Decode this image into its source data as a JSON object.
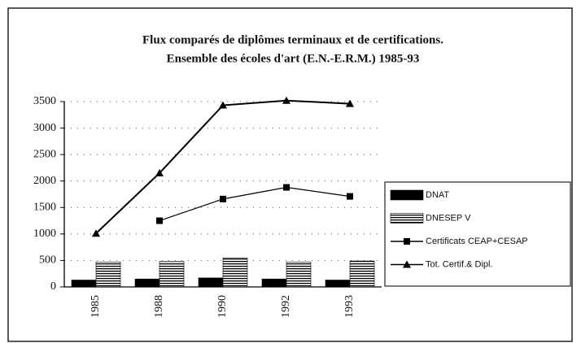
{
  "chart_data": {
    "type": "bar",
    "title": "Flux comparés de diplômes terminaux et de certifications.",
    "subtitle": "Ensemble des écoles d'art (E.N.-E.R.M.) 1985-93",
    "categories": [
      "1985",
      "1988",
      "1990",
      "1992",
      "1993"
    ],
    "series": [
      {
        "name": "DNAT",
        "type": "bar",
        "color": "#000000",
        "values": [
          130,
          150,
          170,
          150,
          130
        ]
      },
      {
        "name": "DNESEP V",
        "type": "bar",
        "color": "#000000",
        "hatch": "horizontal",
        "values": [
          470,
          480,
          550,
          470,
          490
        ]
      },
      {
        "name": "Certificats CEAP+CESAP",
        "type": "line",
        "color": "#000000",
        "marker": "square",
        "values": [
          null,
          1250,
          1660,
          1880,
          1710
        ]
      },
      {
        "name": "Tot. Certif.& Dipl.",
        "type": "line",
        "color": "#000000",
        "marker": "triangle",
        "values": [
          1010,
          2150,
          3430,
          3520,
          3460
        ]
      }
    ],
    "ylim": [
      0,
      3500
    ],
    "yticks": [
      0,
      500,
      1000,
      1500,
      2000,
      2500,
      3000,
      3500
    ],
    "grid": true,
    "legend": "right"
  }
}
